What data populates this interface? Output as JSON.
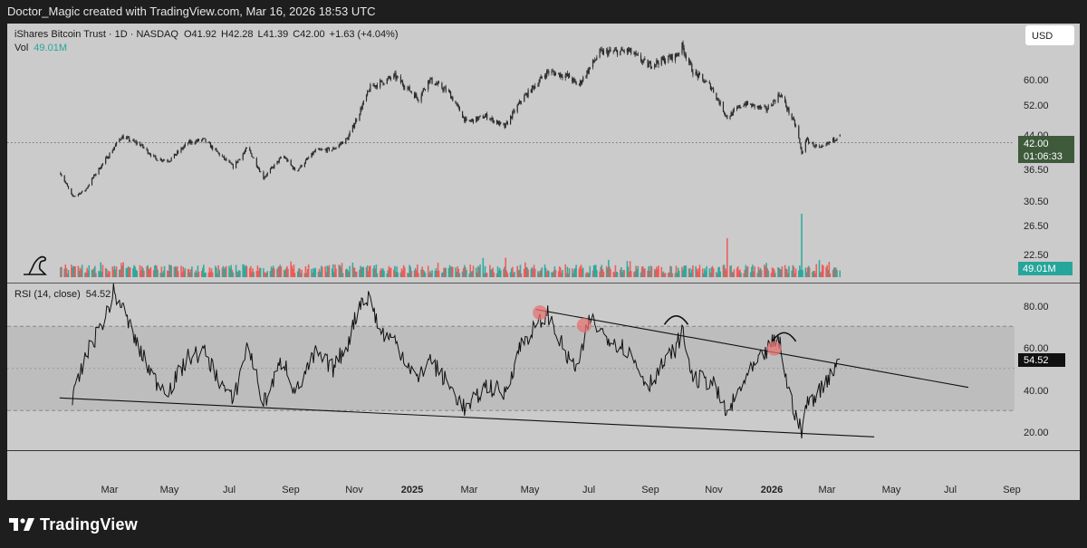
{
  "header": {
    "credit": "Doctor_Magic created with TradingView.com, Mar 16, 2026 18:53 UTC"
  },
  "legend": {
    "symbol": "iShares Bitcoin Trust · 1D · NASDAQ",
    "o_label": "O",
    "o": "41.92",
    "h_label": "H",
    "h": "42.28",
    "l_label": "L",
    "l": "41.39",
    "c_label": "C",
    "c": "42.00",
    "change": "+1.63 (+4.04%)",
    "vol_label": "Vol",
    "vol": "49.01M"
  },
  "currency_button": "USD",
  "price_axis": {
    "ticks": [
      "60.00",
      "52.00",
      "44.00",
      "36.50",
      "30.50",
      "26.50",
      "22.50"
    ]
  },
  "price_badge": {
    "price": "42.00",
    "countdown": "01:06:33"
  },
  "volume_badge": "49.01M",
  "rsi": {
    "label": "RSI (14, close)",
    "value": "54.52",
    "ticks": [
      "80.00",
      "60.00",
      "40.00",
      "20.00"
    ]
  },
  "time_axis": [
    {
      "label": "Mar",
      "bold": false
    },
    {
      "label": "May",
      "bold": false
    },
    {
      "label": "Jul",
      "bold": false
    },
    {
      "label": "Sep",
      "bold": false
    },
    {
      "label": "Nov",
      "bold": false
    },
    {
      "label": "2025",
      "bold": true
    },
    {
      "label": "Mar",
      "bold": false
    },
    {
      "label": "May",
      "bold": false
    },
    {
      "label": "Jul",
      "bold": false
    },
    {
      "label": "Sep",
      "bold": false
    },
    {
      "label": "Nov",
      "bold": false
    },
    {
      "label": "2026",
      "bold": true
    },
    {
      "label": "Mar",
      "bold": false
    },
    {
      "label": "May",
      "bold": false
    },
    {
      "label": "Jul",
      "bold": false
    },
    {
      "label": "Sep",
      "bold": false
    }
  ],
  "footer": {
    "logo_icon": "tradingview-logo-icon",
    "brand": "TradingView"
  },
  "colors": {
    "background": "#cbcbcb",
    "up": "#26a69a",
    "down": "#ef5350",
    "badge": "#3e5a3b",
    "candle": "#2a2a2a"
  },
  "chart_data": {
    "type": "candlestick",
    "symbol": "IBIT",
    "interval": "1D",
    "price_anchors": [
      {
        "x": "2024-01-11",
        "y": 30.0
      },
      {
        "x": "2024-01-23",
        "y": 22.5
      },
      {
        "x": "2024-02-05",
        "y": 24.5
      },
      {
        "x": "2024-02-15",
        "y": 29.5
      },
      {
        "x": "2024-03-01",
        "y": 36.0
      },
      {
        "x": "2024-03-13",
        "y": 41.5
      },
      {
        "x": "2024-04-01",
        "y": 39.0
      },
      {
        "x": "2024-04-17",
        "y": 34.5
      },
      {
        "x": "2024-05-01",
        "y": 34.0
      },
      {
        "x": "2024-05-20",
        "y": 39.5
      },
      {
        "x": "2024-06-05",
        "y": 40.5
      },
      {
        "x": "2024-06-24",
        "y": 35.0
      },
      {
        "x": "2024-07-05",
        "y": 32.0
      },
      {
        "x": "2024-07-20",
        "y": 38.0
      },
      {
        "x": "2024-08-05",
        "y": 28.5
      },
      {
        "x": "2024-08-25",
        "y": 35.5
      },
      {
        "x": "2024-09-07",
        "y": 30.5
      },
      {
        "x": "2024-09-27",
        "y": 37.0
      },
      {
        "x": "2024-10-15",
        "y": 37.5
      },
      {
        "x": "2024-10-30",
        "y": 41.0
      },
      {
        "x": "2024-11-12",
        "y": 50.0
      },
      {
        "x": "2024-11-22",
        "y": 57.0
      },
      {
        "x": "2024-12-17",
        "y": 60.5
      },
      {
        "x": "2025-01-10",
        "y": 53.5
      },
      {
        "x": "2025-01-21",
        "y": 59.5
      },
      {
        "x": "2025-02-10",
        "y": 55.5
      },
      {
        "x": "2025-02-28",
        "y": 46.0
      },
      {
        "x": "2025-03-20",
        "y": 48.0
      },
      {
        "x": "2025-04-08",
        "y": 44.5
      },
      {
        "x": "2025-04-25",
        "y": 53.0
      },
      {
        "x": "2025-05-22",
        "y": 62.0
      },
      {
        "x": "2025-06-12",
        "y": 60.5
      },
      {
        "x": "2025-06-22",
        "y": 57.5
      },
      {
        "x": "2025-07-14",
        "y": 68.0
      },
      {
        "x": "2025-08-13",
        "y": 68.5
      },
      {
        "x": "2025-09-01",
        "y": 64.0
      },
      {
        "x": "2025-09-30",
        "y": 67.0
      },
      {
        "x": "2025-10-06",
        "y": 70.0
      },
      {
        "x": "2025-10-17",
        "y": 62.0
      },
      {
        "x": "2025-11-05",
        "y": 57.0
      },
      {
        "x": "2025-11-21",
        "y": 47.5
      },
      {
        "x": "2025-12-08",
        "y": 52.0
      },
      {
        "x": "2025-12-31",
        "y": 50.0
      },
      {
        "x": "2026-01-14",
        "y": 55.0
      },
      {
        "x": "2026-01-31",
        "y": 44.0
      },
      {
        "x": "2026-02-05",
        "y": 36.0
      },
      {
        "x": "2026-02-09",
        "y": 40.5
      },
      {
        "x": "2026-02-24",
        "y": 37.5
      },
      {
        "x": "2026-03-16",
        "y": 42.0
      }
    ],
    "last": {
      "open": 41.92,
      "high": 42.28,
      "low": 41.39,
      "close": 42.0,
      "change": 1.63,
      "change_pct": 4.04
    },
    "volume_last": "49.01M",
    "volume_spikes": [
      {
        "x": "2025-11-21",
        "scale": 0.55
      },
      {
        "x": "2026-02-05",
        "scale": 1.0
      },
      {
        "x": "2026-02-07",
        "scale": 0.38
      }
    ],
    "rsi_anchors": [
      {
        "x": "2024-01-23",
        "y": 34.0
      },
      {
        "x": "2024-02-05",
        "y": 55.0
      },
      {
        "x": "2024-02-26",
        "y": 75.0
      },
      {
        "x": "2024-03-05",
        "y": 86.0
      },
      {
        "x": "2024-03-13",
        "y": 80.0
      },
      {
        "x": "2024-04-01",
        "y": 58.0
      },
      {
        "x": "2024-04-17",
        "y": 44.0
      },
      {
        "x": "2024-05-01",
        "y": 40.0
      },
      {
        "x": "2024-05-20",
        "y": 55.0
      },
      {
        "x": "2024-06-05",
        "y": 58.0
      },
      {
        "x": "2024-06-24",
        "y": 42.0
      },
      {
        "x": "2024-07-05",
        "y": 34.0
      },
      {
        "x": "2024-07-20",
        "y": 62.0
      },
      {
        "x": "2024-08-05",
        "y": 33.0
      },
      {
        "x": "2024-08-25",
        "y": 55.0
      },
      {
        "x": "2024-09-07",
        "y": 38.0
      },
      {
        "x": "2024-09-27",
        "y": 57.0
      },
      {
        "x": "2024-10-15",
        "y": 50.0
      },
      {
        "x": "2024-10-30",
        "y": 62.0
      },
      {
        "x": "2024-11-12",
        "y": 82.0
      },
      {
        "x": "2024-11-22",
        "y": 84.0
      },
      {
        "x": "2024-12-01",
        "y": 68.0
      },
      {
        "x": "2024-12-17",
        "y": 63.0
      },
      {
        "x": "2025-01-10",
        "y": 44.0
      },
      {
        "x": "2025-01-21",
        "y": 55.0
      },
      {
        "x": "2025-02-10",
        "y": 42.0
      },
      {
        "x": "2025-02-28",
        "y": 30.0
      },
      {
        "x": "2025-03-20",
        "y": 42.0
      },
      {
        "x": "2025-04-08",
        "y": 38.0
      },
      {
        "x": "2025-04-25",
        "y": 62.0
      },
      {
        "x": "2025-05-22",
        "y": 76.0
      },
      {
        "x": "2025-06-12",
        "y": 54.0
      },
      {
        "x": "2025-06-22",
        "y": 50.0
      },
      {
        "x": "2025-07-04",
        "y": 74.0
      },
      {
        "x": "2025-07-14",
        "y": 68.0
      },
      {
        "x": "2025-08-13",
        "y": 58.0
      },
      {
        "x": "2025-09-01",
        "y": 42.0
      },
      {
        "x": "2025-09-30",
        "y": 60.0
      },
      {
        "x": "2025-10-06",
        "y": 68.0
      },
      {
        "x": "2025-10-17",
        "y": 45.0
      },
      {
        "x": "2025-11-05",
        "y": 44.0
      },
      {
        "x": "2025-11-21",
        "y": 28.0
      },
      {
        "x": "2025-12-08",
        "y": 44.0
      },
      {
        "x": "2025-12-31",
        "y": 58.0
      },
      {
        "x": "2026-01-05",
        "y": 62.0
      },
      {
        "x": "2026-01-14",
        "y": 62.0
      },
      {
        "x": "2026-01-22",
        "y": 40.0
      },
      {
        "x": "2026-02-05",
        "y": 19.0
      },
      {
        "x": "2026-02-09",
        "y": 32.0
      },
      {
        "x": "2026-02-24",
        "y": 40.0
      },
      {
        "x": "2026-03-16",
        "y": 54.52
      }
    ],
    "rsi_bands": {
      "upper": 70,
      "middle": 50,
      "lower": 30
    },
    "trendlines": [
      {
        "pane": "rsi",
        "from": {
          "x": "2024-01-10",
          "y": 36.0
        },
        "to": {
          "x": "2026-04-20",
          "y": 17.5
        }
      },
      {
        "pane": "rsi",
        "from": {
          "x": "2025-05-10",
          "y": 78.0
        },
        "to": {
          "x": "2026-07-25",
          "y": 41.0
        }
      }
    ],
    "circles": [
      {
        "x": "2025-05-14",
        "y": 76.5
      },
      {
        "x": "2025-06-28",
        "y": 70.5
      },
      {
        "x": "2026-01-08",
        "y": 59.5
      }
    ],
    "arcs": [
      {
        "x": "2025-09-30",
        "y": 73.0
      },
      {
        "x": "2026-01-18",
        "y": 65.0
      }
    ]
  }
}
